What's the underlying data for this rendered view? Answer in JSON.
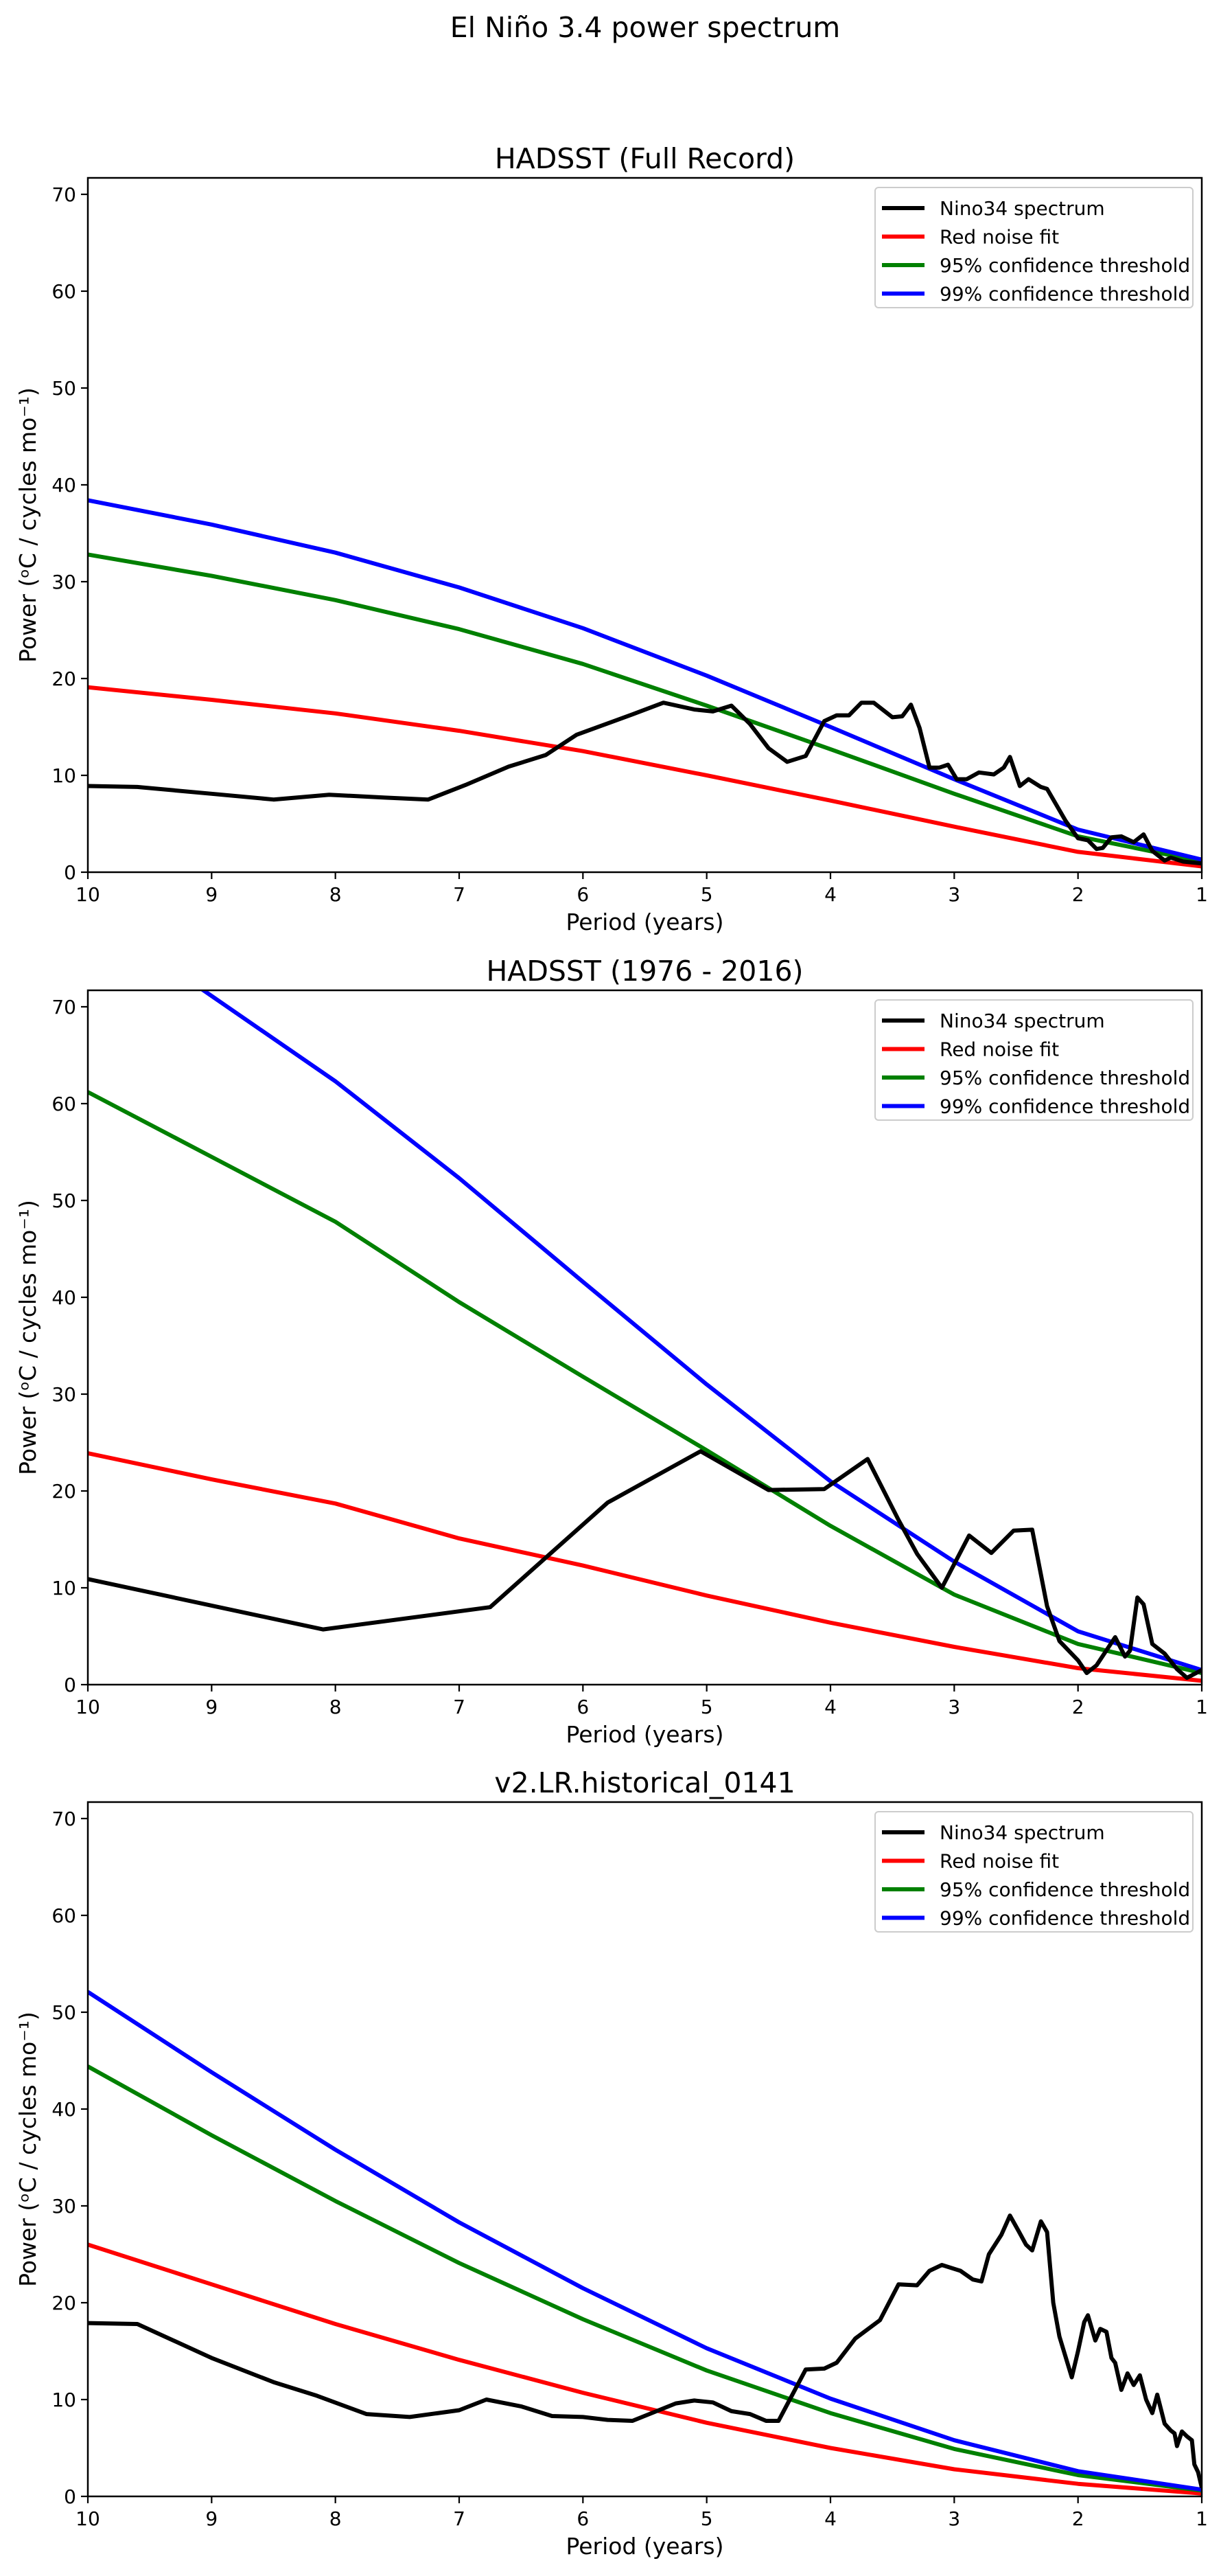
{
  "figure_title": "El Niño 3.4 power spectrum",
  "chart_data": [
    {
      "type": "line",
      "title": "HADSST (Full Record)",
      "xlabel": "Period (years)",
      "ylabel": "Power (ᵒC / cycles mo⁻¹)",
      "xlim": [
        10,
        1
      ],
      "ylim": [
        0,
        71.7
      ],
      "xticks": [
        10,
        9,
        8,
        7,
        6,
        5,
        4,
        3,
        2,
        1
      ],
      "yticks": [
        0,
        10,
        20,
        30,
        40,
        50,
        60,
        70
      ],
      "grid": false,
      "legend_position": "top-right",
      "series": [
        {
          "name": "Nino34 spectrum",
          "color": "#000000",
          "x": [
            10,
            9.6,
            9,
            8.5,
            8.05,
            7.6,
            7.25,
            6.95,
            6.6,
            6.3,
            6.05,
            5.6,
            5.35,
            5.1,
            4.95,
            4.8,
            4.65,
            4.5,
            4.35,
            4.2,
            4.05,
            3.95,
            3.85,
            3.75,
            3.65,
            3.5,
            3.42,
            3.35,
            3.28,
            3.2,
            3.12,
            3.05,
            2.98,
            2.9,
            2.8,
            2.68,
            2.6,
            2.55,
            2.47,
            2.4,
            2.3,
            2.25,
            2.1,
            2.0,
            1.92,
            1.85,
            1.8,
            1.73,
            1.65,
            1.55,
            1.47,
            1.4,
            1.3,
            1.25,
            1.15,
            1.0
          ],
          "y": [
            8.9,
            8.8,
            8.1,
            7.5,
            8.0,
            7.7,
            7.5,
            9.0,
            10.9,
            12.1,
            14.2,
            16.3,
            17.5,
            16.8,
            16.6,
            17.2,
            15.3,
            12.8,
            11.4,
            12.0,
            15.6,
            16.2,
            16.2,
            17.5,
            17.5,
            16.0,
            16.1,
            17.3,
            14.9,
            10.8,
            10.8,
            11.1,
            9.6,
            9.6,
            10.3,
            10.1,
            10.8,
            11.9,
            8.9,
            9.6,
            8.8,
            8.6,
            5.3,
            3.5,
            3.3,
            2.4,
            2.5,
            3.6,
            3.7,
            3.1,
            3.9,
            2.2,
            1.2,
            1.5,
            1.1,
            0.9
          ]
        },
        {
          "name": "Red noise fit",
          "color": "#ff0000",
          "x": [
            10,
            9,
            8,
            7,
            6,
            5,
            4,
            3,
            2,
            1
          ],
          "y": [
            19.1,
            17.8,
            16.4,
            14.6,
            12.5,
            10.0,
            7.4,
            4.7,
            2.1,
            0.6
          ]
        },
        {
          "name": "95% confidence threshold",
          "color": "#008000",
          "x": [
            10,
            9,
            8,
            7,
            6,
            5,
            4,
            3,
            2,
            1
          ],
          "y": [
            32.8,
            30.6,
            28.1,
            25.1,
            21.5,
            17.2,
            12.7,
            8.1,
            3.7,
            1.1
          ]
        },
        {
          "name": "99% confidence threshold",
          "color": "#0000ff",
          "x": [
            10,
            9,
            8,
            7,
            6,
            5,
            4,
            3,
            2,
            1
          ],
          "y": [
            38.4,
            35.9,
            33.0,
            29.4,
            25.2,
            20.3,
            15.0,
            9.6,
            4.4,
            1.3
          ]
        }
      ]
    },
    {
      "type": "line",
      "title": "HADSST (1976 - 2016)",
      "xlabel": "Period (years)",
      "ylabel": "Power (ᵒC / cycles mo⁻¹)",
      "xlim": [
        10,
        1
      ],
      "ylim": [
        0,
        71.7
      ],
      "xticks": [
        10,
        9,
        8,
        7,
        6,
        5,
        4,
        3,
        2,
        1
      ],
      "yticks": [
        0,
        10,
        20,
        30,
        40,
        50,
        60,
        70
      ],
      "grid": false,
      "legend_position": "top-right",
      "series": [
        {
          "name": "Nino34 spectrum",
          "color": "#000000",
          "x": [
            10,
            8.1,
            6.75,
            5.8,
            5.05,
            4.5,
            4.05,
            3.7,
            3.45,
            3.3,
            3.1,
            2.88,
            2.7,
            2.52,
            2.37,
            2.25,
            2.15,
            2.0,
            1.93,
            1.85,
            1.7,
            1.62,
            1.58,
            1.52,
            1.47,
            1.4,
            1.3,
            1.2,
            1.12,
            1.0
          ],
          "y": [
            10.9,
            5.7,
            8.0,
            18.8,
            24.1,
            20.1,
            20.2,
            23.3,
            17.0,
            13.5,
            10.0,
            15.4,
            13.6,
            15.9,
            16.0,
            8.1,
            4.5,
            2.5,
            1.2,
            2.0,
            4.9,
            2.9,
            3.5,
            9.0,
            8.3,
            4.2,
            3.2,
            1.6,
            0.7,
            1.5
          ]
        },
        {
          "name": "Red noise fit",
          "color": "#ff0000",
          "x": [
            10,
            9,
            8,
            7,
            6,
            5,
            4,
            3,
            2,
            1
          ],
          "y": [
            23.9,
            21.2,
            18.7,
            15.1,
            12.3,
            9.2,
            6.4,
            3.9,
            1.7,
            0.4
          ]
        },
        {
          "name": "95% confidence threshold",
          "color": "#008000",
          "x": [
            10,
            9,
            8,
            7,
            6,
            5,
            4,
            3,
            2,
            1
          ],
          "y": [
            61.2,
            54.5,
            47.8,
            39.5,
            31.8,
            24.2,
            16.4,
            9.3,
            4.2,
            1.2
          ]
        },
        {
          "name": "99% confidence threshold",
          "color": "#0000ff",
          "x": [
            10,
            9.1,
            8,
            7,
            6,
            5,
            4,
            3,
            2,
            1
          ],
          "y": [
            80.0,
            72.0,
            62.3,
            52.3,
            41.6,
            31.0,
            21.0,
            12.7,
            5.5,
            1.5
          ]
        }
      ]
    },
    {
      "type": "line",
      "title": "v2.LR.historical_0141",
      "xlabel": "Period (years)",
      "ylabel": "Power (ᵒC / cycles mo⁻¹)",
      "xlim": [
        10,
        1
      ],
      "ylim": [
        0,
        71.7
      ],
      "xticks": [
        10,
        9,
        8,
        7,
        6,
        5,
        4,
        3,
        2,
        1
      ],
      "yticks": [
        0,
        10,
        20,
        30,
        40,
        50,
        60,
        70
      ],
      "grid": false,
      "legend_position": "top-right",
      "series": [
        {
          "name": "Nino34 spectrum",
          "color": "#000000",
          "x": [
            10,
            9.6,
            9,
            8.5,
            8.15,
            7.75,
            7.4,
            7.0,
            6.78,
            6.5,
            6.25,
            6.0,
            5.8,
            5.6,
            5.25,
            5.1,
            4.95,
            4.8,
            4.65,
            4.52,
            4.42,
            4.2,
            4.05,
            3.95,
            3.8,
            3.6,
            3.45,
            3.3,
            3.2,
            3.1,
            2.95,
            2.85,
            2.78,
            2.72,
            2.62,
            2.55,
            2.48,
            2.42,
            2.37,
            2.3,
            2.25,
            2.2,
            2.15,
            2.05,
            2.0,
            1.95,
            1.92,
            1.86,
            1.82,
            1.77,
            1.73,
            1.7,
            1.65,
            1.6,
            1.55,
            1.5,
            1.45,
            1.4,
            1.36,
            1.3,
            1.25,
            1.22,
            1.2,
            1.16,
            1.12,
            1.08,
            1.06,
            1.03,
            1.0
          ],
          "y": [
            17.9,
            17.8,
            14.3,
            11.8,
            10.4,
            8.5,
            8.2,
            8.9,
            10.0,
            9.3,
            8.3,
            8.2,
            7.9,
            7.8,
            9.6,
            9.9,
            9.7,
            8.8,
            8.5,
            7.8,
            7.8,
            13.1,
            13.2,
            13.8,
            16.3,
            18.2,
            21.9,
            21.8,
            23.3,
            23.9,
            23.3,
            22.4,
            22.2,
            25.0,
            27.0,
            29.0,
            27.4,
            26.0,
            25.4,
            28.4,
            27.3,
            20.0,
            16.5,
            12.3,
            15.0,
            18.0,
            18.7,
            16.1,
            17.3,
            17.0,
            14.3,
            13.8,
            11.0,
            12.7,
            11.5,
            12.5,
            10.0,
            8.6,
            10.5,
            7.5,
            6.8,
            6.5,
            5.2,
            6.7,
            6.2,
            5.8,
            3.3,
            2.5,
            0.9
          ]
        },
        {
          "name": "Red noise fit",
          "color": "#ff0000",
          "x": [
            10,
            9,
            8,
            7,
            6,
            5,
            4,
            3,
            2,
            1
          ],
          "y": [
            26.0,
            21.9,
            17.8,
            14.1,
            10.7,
            7.6,
            5.0,
            2.8,
            1.3,
            0.3
          ]
        },
        {
          "name": "95% confidence threshold",
          "color": "#008000",
          "x": [
            10,
            9,
            8,
            7,
            6,
            5,
            4,
            3,
            2,
            1
          ],
          "y": [
            44.4,
            37.3,
            30.5,
            24.1,
            18.3,
            13.0,
            8.6,
            4.9,
            2.2,
            0.6
          ]
        },
        {
          "name": "99% confidence threshold",
          "color": "#0000ff",
          "x": [
            10,
            9,
            8,
            7,
            6,
            5,
            4,
            3,
            2,
            1
          ],
          "y": [
            52.1,
            43.8,
            35.8,
            28.3,
            21.5,
            15.3,
            10.1,
            5.8,
            2.6,
            0.7
          ]
        }
      ]
    }
  ]
}
